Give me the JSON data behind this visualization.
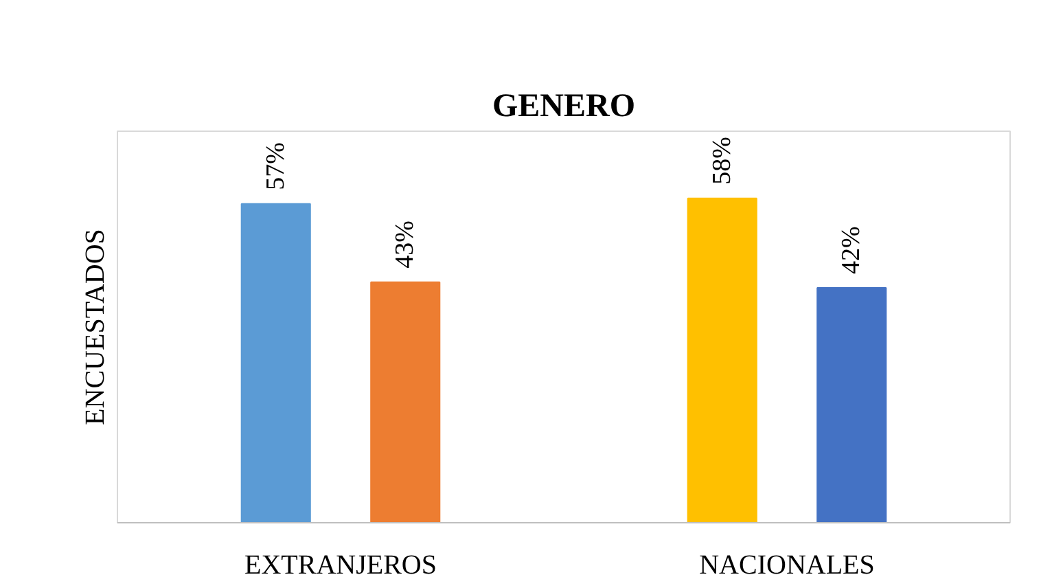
{
  "chart_data": {
    "type": "bar",
    "title": "GENERO",
    "ylabel": "ENCUESTADOS",
    "categories": [
      "EXTRANJEROS",
      "NACIONALES"
    ],
    "series": [
      {
        "colors": [
          "#5b9bd5",
          "#ffc000"
        ],
        "values": [
          57,
          58
        ],
        "value_labels": [
          "57%",
          "58%"
        ]
      },
      {
        "colors": [
          "#ed7d31",
          "#4472c4"
        ],
        "values": [
          43,
          42
        ],
        "value_labels": [
          "43%",
          "42%"
        ]
      }
    ],
    "ylim": [
      0,
      70
    ],
    "grid": false,
    "tick_labels": "x"
  }
}
